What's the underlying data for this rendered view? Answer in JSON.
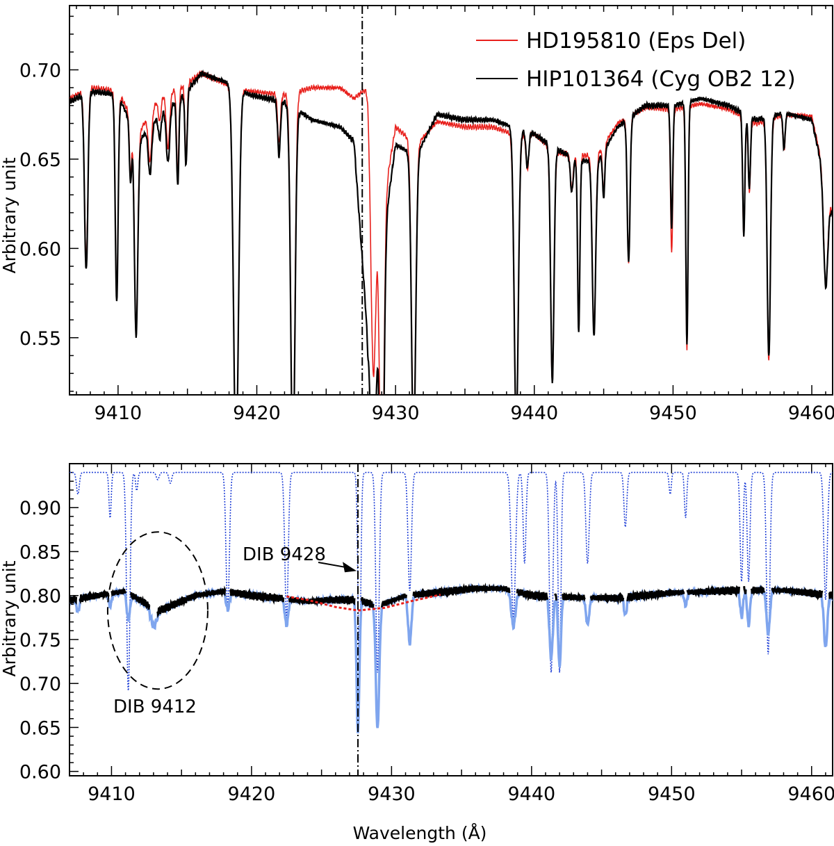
{
  "chart_data": [
    {
      "type": "line",
      "panel": "top",
      "title": "",
      "xlabel": "",
      "ylabel": "Arbitrary unit",
      "xlim": [
        9406.5,
        9461.5
      ],
      "ylim": [
        0.518,
        0.736
      ],
      "xticks": [
        9410,
        9420,
        9430,
        9440,
        9450,
        9460
      ],
      "xtick_labels": [
        "9410",
        "9420",
        "9430",
        "9440",
        "9450",
        "9460"
      ],
      "yticks": [
        0.55,
        0.6,
        0.65,
        0.7
      ],
      "ytick_labels": [
        "0.55",
        "0.60",
        "0.65",
        "0.70"
      ],
      "grid": false,
      "legend_position": "top-right",
      "vline_x": 9427.6,
      "series": [
        {
          "name": "HD195810 (Eps Del)",
          "color": "#e8201c",
          "continuum": [
            [
              9406.5,
              0.684
            ],
            [
              9408,
              0.69
            ],
            [
              9410,
              0.688
            ],
            [
              9411.5,
              0.665
            ],
            [
              9413,
              0.685
            ],
            [
              9414.5,
              0.69
            ],
            [
              9416,
              0.698
            ],
            [
              9417.8,
              0.692
            ],
            [
              9419.5,
              0.688
            ],
            [
              9422,
              0.686
            ],
            [
              9424,
              0.69
            ],
            [
              9426,
              0.69
            ],
            [
              9427,
              0.684
            ],
            [
              9428,
              0.69
            ],
            [
              9429,
              0.62
            ],
            [
              9430,
              0.668
            ],
            [
              9431.5,
              0.658
            ],
            [
              9433,
              0.671
            ],
            [
              9435,
              0.668
            ],
            [
              9437,
              0.668
            ],
            [
              9438.5,
              0.664
            ],
            [
              9440,
              0.664
            ],
            [
              9441.5,
              0.654
            ],
            [
              9443,
              0.652
            ],
            [
              9444.5,
              0.652
            ],
            [
              9446,
              0.67
            ],
            [
              9448,
              0.679
            ],
            [
              9450,
              0.678
            ],
            [
              9452,
              0.681
            ],
            [
              9454,
              0.678
            ],
            [
              9456,
              0.67
            ],
            [
              9458,
              0.675
            ],
            [
              9460,
              0.674
            ],
            [
              9461.5,
              0.62
            ]
          ],
          "lines": [
            [
              9407.7,
              0.14,
              0.12
            ],
            [
              9409.9,
              0.17,
              0.1
            ],
            [
              9410.9,
              0.05,
              0.08
            ],
            [
              9411.3,
              0.17,
              0.12
            ],
            [
              9412.3,
              0.04,
              0.12
            ],
            [
              9413.0,
              0.02,
              0.1
            ],
            [
              9413.6,
              0.045,
              0.12
            ],
            [
              9414.3,
              0.07,
              0.08
            ],
            [
              9414.9,
              0.06,
              0.08
            ],
            [
              9418.5,
              0.3,
              0.18
            ],
            [
              9421.6,
              0.04,
              0.1
            ],
            [
              9422.6,
              0.3,
              0.15
            ],
            [
              9428.4,
              0.2,
              0.18
            ],
            [
              9429.0,
              0.3,
              0.15
            ],
            [
              9431.3,
              0.25,
              0.15
            ],
            [
              9438.7,
              0.25,
              0.15
            ],
            [
              9439.5,
              0.03,
              0.1
            ],
            [
              9441.3,
              0.2,
              0.12
            ],
            [
              9442.7,
              0.03,
              0.1
            ],
            [
              9443.2,
              0.15,
              0.08
            ],
            [
              9444.3,
              0.15,
              0.12
            ],
            [
              9445.0,
              0.04,
              0.08
            ],
            [
              9446.8,
              0.12,
              0.1
            ],
            [
              9449.9,
              0.12,
              0.08
            ],
            [
              9451.0,
              0.2,
              0.08
            ],
            [
              9455.1,
              0.1,
              0.08
            ],
            [
              9455.5,
              0.06,
              0.08
            ],
            [
              9456.9,
              0.2,
              0.12
            ],
            [
              9458.0,
              0.03,
              0.08
            ],
            [
              9461.0,
              0.09,
              0.15
            ]
          ]
        },
        {
          "name": "HIP101364 (Cyg OB2 12)",
          "color": "#000000",
          "continuum": [
            [
              9406.5,
              0.682
            ],
            [
              9408,
              0.688
            ],
            [
              9410,
              0.686
            ],
            [
              9411.5,
              0.66
            ],
            [
              9413,
              0.675
            ],
            [
              9414.5,
              0.684
            ],
            [
              9416,
              0.698
            ],
            [
              9417.8,
              0.693
            ],
            [
              9419.5,
              0.686
            ],
            [
              9422,
              0.682
            ],
            [
              9424,
              0.672
            ],
            [
              9426,
              0.668
            ],
            [
              9427,
              0.66
            ],
            [
              9428,
              0.55
            ],
            [
              9429,
              0.6
            ],
            [
              9430,
              0.658
            ],
            [
              9431.5,
              0.652
            ],
            [
              9433,
              0.675
            ],
            [
              9435,
              0.672
            ],
            [
              9437,
              0.672
            ],
            [
              9438.5,
              0.668
            ],
            [
              9440,
              0.664
            ],
            [
              9441.5,
              0.656
            ],
            [
              9443,
              0.65
            ],
            [
              9444.5,
              0.648
            ],
            [
              9446,
              0.668
            ],
            [
              9448,
              0.68
            ],
            [
              9450,
              0.68
            ],
            [
              9452,
              0.684
            ],
            [
              9454,
              0.68
            ],
            [
              9456,
              0.672
            ],
            [
              9458,
              0.676
            ],
            [
              9460,
              0.672
            ],
            [
              9461.5,
              0.618
            ]
          ],
          "lines": [
            [
              9407.7,
              0.145,
              0.12
            ],
            [
              9409.9,
              0.17,
              0.1
            ],
            [
              9410.9,
              0.05,
              0.08
            ],
            [
              9411.3,
              0.17,
              0.12
            ],
            [
              9412.3,
              0.04,
              0.12
            ],
            [
              9413.0,
              0.02,
              0.1
            ],
            [
              9413.6,
              0.045,
              0.12
            ],
            [
              9414.3,
              0.07,
              0.08
            ],
            [
              9414.9,
              0.06,
              0.08
            ],
            [
              9418.5,
              0.3,
              0.18
            ],
            [
              9421.6,
              0.045,
              0.1
            ],
            [
              9422.6,
              0.3,
              0.15
            ],
            [
              9428.4,
              0.2,
              0.18
            ],
            [
              9429.0,
              0.3,
              0.15
            ],
            [
              9431.3,
              0.25,
              0.15
            ],
            [
              9438.7,
              0.25,
              0.15
            ],
            [
              9439.5,
              0.03,
              0.1
            ],
            [
              9441.3,
              0.2,
              0.12
            ],
            [
              9442.7,
              0.03,
              0.1
            ],
            [
              9443.2,
              0.15,
              0.08
            ],
            [
              9444.3,
              0.15,
              0.12
            ],
            [
              9445.0,
              0.04,
              0.08
            ],
            [
              9446.8,
              0.12,
              0.1
            ],
            [
              9449.9,
              0.1,
              0.08
            ],
            [
              9451.0,
              0.2,
              0.08
            ],
            [
              9455.1,
              0.1,
              0.08
            ],
            [
              9455.5,
              0.06,
              0.08
            ],
            [
              9456.9,
              0.2,
              0.12
            ],
            [
              9458.0,
              0.03,
              0.08
            ],
            [
              9461.0,
              0.09,
              0.15
            ]
          ]
        }
      ]
    },
    {
      "type": "line",
      "panel": "bottom",
      "title": "",
      "xlabel": "Wavelength (Å)",
      "ylabel": "Arbitrary unit",
      "xlim": [
        9407.0,
        9461.5
      ],
      "ylim": [
        0.595,
        0.95
      ],
      "xticks": [
        9410,
        9420,
        9430,
        9440,
        9450,
        9460
      ],
      "xtick_labels": [
        "9410",
        "9420",
        "9430",
        "9440",
        "9450",
        "9460"
      ],
      "yticks": [
        0.6,
        0.65,
        0.7,
        0.75,
        0.8,
        0.85,
        0.9
      ],
      "ytick_labels": [
        "0.60",
        "0.65",
        "0.70",
        "0.75",
        "0.80",
        "0.85",
        "0.90"
      ],
      "grid": false,
      "vline_x": 9427.6,
      "series": [
        {
          "color": "#1f3fd6",
          "style": "dotted",
          "baseline": 0.94,
          "lines": [
            [
              9407.6,
              0.012,
              0.1
            ],
            [
              9409.9,
              0.025,
              0.08
            ],
            [
              9411.2,
              0.12,
              0.12
            ],
            [
              9411.8,
              0.01,
              0.08
            ],
            [
              9413.3,
              0.004,
              0.1
            ],
            [
              9414.2,
              0.006,
              0.1
            ],
            [
              9418.3,
              0.075,
              0.12
            ],
            [
              9422.5,
              0.08,
              0.12
            ],
            [
              9427.7,
              0.11,
              0.1
            ],
            [
              9429.0,
              0.11,
              0.12
            ],
            [
              9431.3,
              0.065,
              0.12
            ],
            [
              9438.7,
              0.08,
              0.15
            ],
            [
              9439.5,
              0.05,
              0.1
            ],
            [
              9441.4,
              0.11,
              0.12
            ],
            [
              9442.0,
              0.11,
              0.1
            ],
            [
              9444.0,
              0.05,
              0.12
            ],
            [
              9446.7,
              0.03,
              0.1
            ],
            [
              9449.9,
              0.012,
              0.08
            ],
            [
              9451.0,
              0.025,
              0.08
            ],
            [
              9455.0,
              0.06,
              0.1
            ],
            [
              9455.5,
              0.06,
              0.1
            ],
            [
              9456.9,
              0.1,
              0.12
            ],
            [
              9461.0,
              0.07,
              0.12
            ]
          ]
        },
        {
          "color": "#7fa5ee",
          "baseline": 0.8,
          "lines": [
            [
              9407.6,
              0.015,
              0.1
            ],
            [
              9409.9,
              0.015,
              0.1
            ],
            [
              9411.2,
              0.03,
              0.12
            ],
            [
              9413.0,
              0.02,
              0.2
            ],
            [
              9418.3,
              0.02,
              0.12
            ],
            [
              9422.5,
              0.03,
              0.12
            ],
            [
              9427.6,
              0.15,
              0.1
            ],
            [
              9429.0,
              0.14,
              0.12
            ],
            [
              9431.3,
              0.055,
              0.12
            ],
            [
              9438.7,
              0.04,
              0.15
            ],
            [
              9441.4,
              0.07,
              0.12
            ],
            [
              9442.0,
              0.08,
              0.1
            ],
            [
              9444.0,
              0.03,
              0.12
            ],
            [
              9446.7,
              0.02,
              0.1
            ],
            [
              9451.0,
              0.015,
              0.1
            ],
            [
              9455.0,
              0.03,
              0.1
            ],
            [
              9455.5,
              0.04,
              0.1
            ],
            [
              9456.9,
              0.05,
              0.12
            ],
            [
              9461.0,
              0.06,
              0.12
            ]
          ]
        },
        {
          "color": "#000000",
          "baseline": 0.8,
          "continuum": [
            [
              9407,
              0.795
            ],
            [
              9409,
              0.8
            ],
            [
              9411,
              0.805
            ],
            [
              9412,
              0.795
            ],
            [
              9413.3,
              0.782
            ],
            [
              9414.5,
              0.79
            ],
            [
              9416,
              0.8
            ],
            [
              9418,
              0.805
            ],
            [
              9420,
              0.8
            ],
            [
              9422,
              0.797
            ],
            [
              9424,
              0.793
            ],
            [
              9425.5,
              0.795
            ],
            [
              9427.6,
              0.795
            ],
            [
              9429,
              0.788
            ],
            [
              9431,
              0.8
            ],
            [
              9433,
              0.803
            ],
            [
              9436,
              0.808
            ],
            [
              9438,
              0.808
            ],
            [
              9440,
              0.8
            ],
            [
              9443,
              0.798
            ],
            [
              9446,
              0.797
            ],
            [
              9450,
              0.803
            ],
            [
              9455,
              0.806
            ],
            [
              9458,
              0.806
            ],
            [
              9461.5,
              0.8
            ]
          ]
        },
        {
          "color": "#e8201c",
          "style": "dotted",
          "points": [
            [
              9422.5,
              0.799
            ],
            [
              9424,
              0.795
            ],
            [
              9426,
              0.787
            ],
            [
              9427.6,
              0.783
            ],
            [
              9429.5,
              0.786
            ],
            [
              9431.5,
              0.794
            ],
            [
              9433.5,
              0.801
            ]
          ]
        }
      ],
      "annotations": [
        {
          "text": "DIB 9428",
          "target_x": 9427.6,
          "target_y": 0.828
        },
        {
          "text": "DIB 9412",
          "ellipse_center": [
            9413.3,
            0.783
          ]
        }
      ]
    }
  ]
}
